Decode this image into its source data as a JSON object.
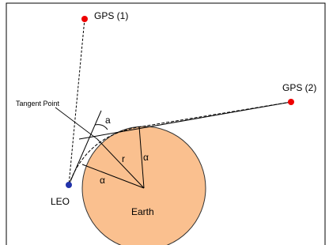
{
  "labels": {
    "gps1": "GPS (1)",
    "gps2": "GPS (2)",
    "tangent_point": "Tangent Point",
    "leo": "LEO",
    "earth": "Earth",
    "angle_a": "a",
    "radius": "r",
    "alpha_1": "α",
    "alpha_2": "α"
  }
}
